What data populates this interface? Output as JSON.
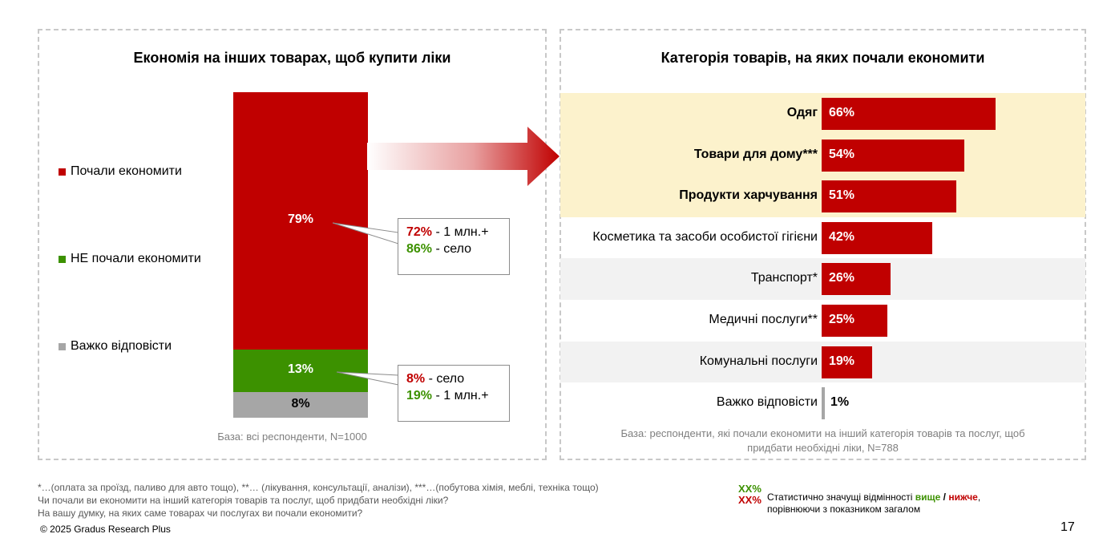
{
  "left_chart": {
    "title": "Економія на інших товарах, щоб купити ліки",
    "legend": [
      {
        "label": "Почали економити",
        "color": "#c00000"
      },
      {
        "label": "НЕ почали економити",
        "color": "#3c9100"
      },
      {
        "label": "Важко відповісти",
        "color": "#a6a6a6"
      }
    ],
    "callouts": [
      {
        "lines": [
          {
            "value": "72%",
            "text": " - 1 млн.+",
            "color": "red"
          },
          {
            "value": "86%",
            "text": " - село",
            "color": "green"
          }
        ]
      },
      {
        "lines": [
          {
            "value": "8%",
            "text": " - село",
            "color": "red"
          },
          {
            "value": "19%",
            "text": " - 1 млн.+",
            "color": "green"
          }
        ]
      }
    ],
    "base": "База: всі респонденти, N=1000"
  },
  "right_chart": {
    "title": "Категорія товарів, на яких почали економити",
    "base_line1": "База: респонденти, які почали економити на інший категорія товарів та послуг, щоб",
    "base_line2": "придбати необхідні ліки, N=788"
  },
  "chart_data": [
    {
      "type": "bar",
      "stacked": true,
      "title": "Економія на інших товарах, щоб купити ліки",
      "categories": [
        ""
      ],
      "series": [
        {
          "name": "Почали економити",
          "values": [
            79
          ],
          "label": "79%",
          "color": "#c00000"
        },
        {
          "name": "НЕ почали економити",
          "values": [
            13
          ],
          "label": "13%",
          "color": "#3c9100"
        },
        {
          "name": "Важко відповісти",
          "values": [
            8
          ],
          "label": "8%",
          "color": "#a6a6a6"
        }
      ],
      "ylim": [
        0,
        100
      ]
    },
    {
      "type": "bar",
      "orientation": "horizontal",
      "title": "Категорія товарів, на яких почали економити",
      "categories": [
        "Одяг",
        "Товари для дому***",
        "Продукти харчування",
        "Косметика та засоби особистої гігієни",
        "Транспорт*",
        "Медичні послуги**",
        "Комунальні послуги",
        "Важко відповісти"
      ],
      "values": [
        66,
        54,
        51,
        42,
        26,
        25,
        19,
        1
      ],
      "labels": [
        "66%",
        "54%",
        "51%",
        "42%",
        "26%",
        "25%",
        "19%",
        "1%"
      ],
      "highlighted": [
        true,
        true,
        true,
        false,
        false,
        false,
        false,
        false
      ],
      "colors": [
        "#c00000",
        "#c00000",
        "#c00000",
        "#c00000",
        "#c00000",
        "#c00000",
        "#c00000",
        "#a6a6a6"
      ],
      "xlim": [
        0,
        100
      ]
    }
  ],
  "footnotes": [
    "*…(оплата за проїзд, паливо для авто тощо), **… (лікування, консультації, аналізи), ***…(побутова хімія, меблі, техніка тощо)",
    "Чи почали ви економити на інший категорія товарів та послуг, щоб придбати необхідні ліки?",
    "На вашу думку, на яких саме товарах чи послугах ви почали економити?"
  ],
  "copyright": "© 2025 Gradus Research Plus",
  "page_number": "17",
  "significance": {
    "mark_higher": "XX%",
    "mark_lower": "XX%",
    "text_prefix": "Статистично значущі відмінності ",
    "higher": "вище",
    "slash": " / ",
    "lower": "нижче",
    "comma": ",",
    "text_line2": "порівнюючи з показником загалом"
  }
}
